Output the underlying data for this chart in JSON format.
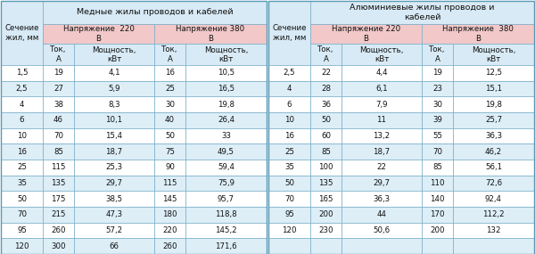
{
  "title_copper": "Медные жилы проводов и кабелей",
  "title_alum": "Алюминиевые жилы проводов и\nкабелей",
  "copper_data": [
    [
      "1,5",
      "19",
      "4,1",
      "16",
      "10,5"
    ],
    [
      "2,5",
      "27",
      "5,9",
      "25",
      "16,5"
    ],
    [
      "4",
      "38",
      "8,3",
      "30",
      "19,8"
    ],
    [
      "6",
      "46",
      "10,1",
      "40",
      "26,4"
    ],
    [
      "10",
      "70",
      "15,4",
      "50",
      "33"
    ],
    [
      "16",
      "85",
      "18,7",
      "75",
      "49,5"
    ],
    [
      "25",
      "115",
      "25,3",
      "90",
      "59,4"
    ],
    [
      "35",
      "135",
      "29,7",
      "115",
      "75,9"
    ],
    [
      "50",
      "175",
      "38,5",
      "145",
      "95,7"
    ],
    [
      "70",
      "215",
      "47,3",
      "180",
      "118,8"
    ],
    [
      "95",
      "260",
      "57,2",
      "220",
      "145,2"
    ],
    [
      "120",
      "300",
      "66",
      "260",
      "171,6"
    ]
  ],
  "alum_data": [
    [
      "2,5",
      "22",
      "4,4",
      "19",
      "12,5"
    ],
    [
      "4",
      "28",
      "6,1",
      "23",
      "15,1"
    ],
    [
      "6",
      "36",
      "7,9",
      "30",
      "19,8"
    ],
    [
      "10",
      "50",
      "11",
      "39",
      "25,7"
    ],
    [
      "16",
      "60",
      "13,2",
      "55",
      "36,3"
    ],
    [
      "25",
      "85",
      "18,7",
      "70",
      "46,2"
    ],
    [
      "35",
      "100",
      "22",
      "85",
      "56,1"
    ],
    [
      "50",
      "135",
      "29,7",
      "110",
      "72,6"
    ],
    [
      "70",
      "165",
      "36,3",
      "140",
      "92,4"
    ],
    [
      "95",
      "200",
      "44",
      "170",
      "112,2"
    ],
    [
      "120",
      "230",
      "50,6",
      "200",
      "132"
    ],
    [
      "",
      "",
      "",
      "",
      ""
    ]
  ],
  "bg_header_light": "#ddeef7",
  "bg_header_mid": "#c8e0ef",
  "bg_white": "#ffffff",
  "bg_row_alt": "#ddeef7",
  "border_color": "#7aafca",
  "text_color": "#111111",
  "font_size": 6.2,
  "header_font_size": 6.5
}
